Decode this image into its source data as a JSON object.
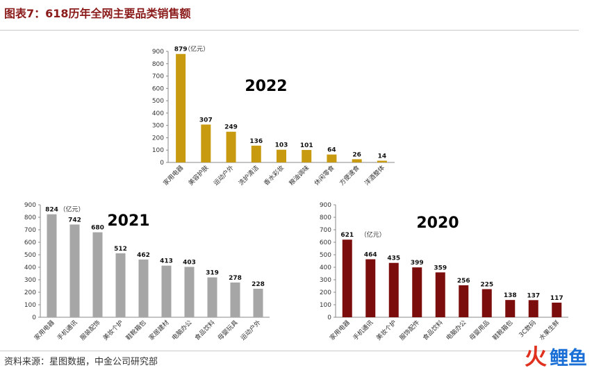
{
  "header": {
    "title": "图表7：618历年全网主要品类销售额"
  },
  "footer": {
    "source": "资料来源：星图数据，中金公司研究部"
  },
  "watermark": {
    "icon": "fire-icon",
    "text": "鲤鱼"
  },
  "chart_data": [
    {
      "type": "bar",
      "year_label": "2022",
      "unit": "（亿元）",
      "color": "#C79A0F",
      "ylim": [
        0,
        900
      ],
      "yticks": [
        0,
        100,
        200,
        300,
        400,
        500,
        600,
        700,
        800,
        900
      ],
      "categories": [
        "家用电器",
        "美容护肤",
        "运动户外",
        "洗护清洁",
        "香水彩妆",
        "粮油调味",
        "休闲零食",
        "方便速食",
        "洋酒整体"
      ],
      "values": [
        879,
        307,
        249,
        136,
        103,
        101,
        64,
        26,
        14
      ],
      "grid": false
    },
    {
      "type": "bar",
      "year_label": "2021",
      "unit": "（亿元）",
      "color": "#A6A6A6",
      "ylim": [
        0,
        900
      ],
      "yticks": [
        0,
        100,
        200,
        300,
        400,
        500,
        600,
        700,
        800,
        900
      ],
      "categories": [
        "家用电器",
        "手机通讯",
        "服装配饰",
        "美妆个护",
        "鞋靴箱包",
        "家居建材",
        "电脑办公",
        "食品饮料",
        "母婴玩具",
        "运动户外"
      ],
      "values": [
        824,
        742,
        680,
        512,
        462,
        413,
        403,
        319,
        278,
        228
      ],
      "grid": false
    },
    {
      "type": "bar",
      "year_label": "2020",
      "unit": "（亿元）",
      "color": "#7B0D0D",
      "ylim": [
        0,
        900
      ],
      "yticks": [
        0,
        100,
        200,
        300,
        400,
        500,
        600,
        700,
        800,
        900
      ],
      "categories": [
        "家用电器",
        "手机通讯",
        "美妆个护",
        "服饰配件",
        "食品饮料",
        "电脑办公",
        "母婴用品",
        "鞋靴箱包",
        "3C数码",
        "水果生鲜"
      ],
      "values": [
        621,
        464,
        435,
        399,
        359,
        256,
        225,
        138,
        137,
        117
      ],
      "grid": false
    }
  ]
}
